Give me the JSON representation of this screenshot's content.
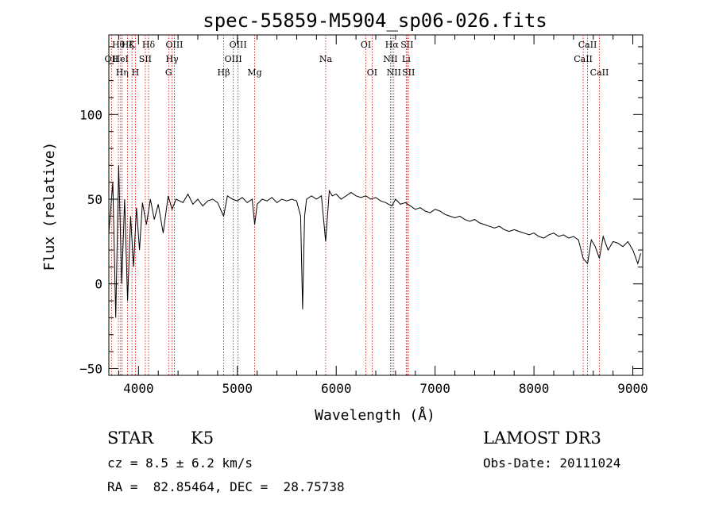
{
  "chart_data": {
    "type": "line",
    "title": "spec-55859-M5904_sp06-026.fits",
    "xlabel": "Wavelength (Å)",
    "ylabel": "Flux (relative)",
    "xlim": [
      3700,
      9100
    ],
    "ylim": [
      -54,
      147
    ],
    "xticks": [
      4000,
      5000,
      6000,
      7000,
      8000,
      9000
    ],
    "yticks": [
      -50,
      0,
      50,
      100
    ],
    "grid": false,
    "line_color": "#000000",
    "marker_color": "#cc0000",
    "series": [
      {
        "name": "flux",
        "x": [
          3700,
          3740,
          3770,
          3800,
          3830,
          3860,
          3890,
          3920,
          3950,
          3980,
          4010,
          4040,
          4080,
          4120,
          4160,
          4200,
          4250,
          4300,
          4340,
          4380,
          4450,
          4500,
          4550,
          4600,
          4650,
          4700,
          4750,
          4800,
          4861,
          4900,
          4950,
          5000,
          5050,
          5100,
          5150,
          5175,
          5200,
          5250,
          5300,
          5350,
          5400,
          5450,
          5500,
          5550,
          5600,
          5640,
          5660,
          5680,
          5700,
          5750,
          5800,
          5850,
          5893,
          5930,
          5960,
          6000,
          6050,
          6100,
          6150,
          6200,
          6250,
          6300,
          6350,
          6400,
          6450,
          6500,
          6563,
          6600,
          6650,
          6700,
          6750,
          6800,
          6850,
          6900,
          6950,
          7000,
          7050,
          7100,
          7150,
          7200,
          7250,
          7300,
          7350,
          7400,
          7450,
          7500,
          7550,
          7600,
          7650,
          7700,
          7750,
          7800,
          7850,
          7900,
          7950,
          8000,
          8050,
          8100,
          8150,
          8200,
          8250,
          8300,
          8350,
          8400,
          8450,
          8498,
          8542,
          8580,
          8620,
          8662,
          8700,
          8750,
          8800,
          8850,
          8900,
          8950,
          9000,
          9050,
          9080
        ],
        "y": [
          30,
          60,
          -20,
          70,
          0,
          50,
          -10,
          40,
          10,
          45,
          20,
          48,
          35,
          50,
          38,
          47,
          30,
          52,
          44,
          50,
          48,
          53,
          47,
          50,
          46,
          49,
          50,
          48,
          40,
          52,
          50,
          49,
          51,
          48,
          50,
          35,
          47,
          50,
          49,
          51,
          48,
          50,
          49,
          50,
          49,
          40,
          -15,
          40,
          50,
          52,
          50,
          52,
          25,
          55,
          52,
          53,
          50,
          52,
          54,
          52,
          51,
          52,
          50,
          51,
          49,
          48,
          46,
          50,
          47,
          48,
          46,
          44,
          45,
          43,
          42,
          44,
          43,
          41,
          40,
          39,
          40,
          38,
          37,
          38,
          36,
          35,
          34,
          33,
          34,
          32,
          31,
          32,
          31,
          30,
          29,
          30,
          28,
          27,
          29,
          30,
          28,
          29,
          27,
          28,
          26,
          15,
          12,
          26,
          22,
          15,
          28,
          20,
          25,
          24,
          22,
          25,
          20,
          12,
          18
        ]
      }
    ],
    "lines": [
      {
        "name": "OII",
        "x": 3727,
        "row": 1
      },
      {
        "name": "Hθ",
        "x": 3797,
        "row": 0
      },
      {
        "name": "HeI",
        "x": 3819,
        "row": 1
      },
      {
        "name": "Hη",
        "x": 3835,
        "row": 2
      },
      {
        "name": "Hζ",
        "x": 3889,
        "row": 0
      },
      {
        "name": "K",
        "x": 3934,
        "row": 0
      },
      {
        "name": "SII",
        "x": 4069,
        "row": 1
      },
      {
        "name": "H",
        "x": 3969,
        "row": 2
      },
      {
        "name": "Hδ",
        "x": 4102,
        "row": 0
      },
      {
        "name": "OIII",
        "x": 4363,
        "row": 0
      },
      {
        "name": "Hγ",
        "x": 4340,
        "row": 1
      },
      {
        "name": "G",
        "x": 4305,
        "row": 2
      },
      {
        "name": "OIII",
        "x": 5007,
        "row": 0
      },
      {
        "name": "OIII",
        "x": 4959,
        "row": 1
      },
      {
        "name": "Hβ",
        "x": 4861,
        "row": 2
      },
      {
        "name": "Mg",
        "x": 5175,
        "row": 2
      },
      {
        "name": "Na",
        "x": 5893,
        "row": 1
      },
      {
        "name": "OI",
        "x": 6300,
        "row": 0
      },
      {
        "name": "OI",
        "x": 6363,
        "row": 2
      },
      {
        "name": "Hα",
        "x": 6563,
        "row": 0
      },
      {
        "name": "SII",
        "x": 6716,
        "row": 0
      },
      {
        "name": "NII",
        "x": 6548,
        "row": 1
      },
      {
        "name": "Li",
        "x": 6708,
        "row": 1
      },
      {
        "name": "NII",
        "x": 6583,
        "row": 2
      },
      {
        "name": "SII",
        "x": 6731,
        "row": 2
      },
      {
        "name": "CaII",
        "x": 8542,
        "row": 0
      },
      {
        "name": "CaII",
        "x": 8498,
        "row": 1
      },
      {
        "name": "CaII",
        "x": 8662,
        "row": 2
      }
    ]
  },
  "info": {
    "class_label": "STAR",
    "subclass": "K5",
    "survey": "LAMOST DR3",
    "cz": "cz = 8.5 ± 6.2 km/s",
    "obs_date": "Obs-Date: 20111024",
    "radec": "RA =  82.85464, DEC =  28.75738"
  }
}
